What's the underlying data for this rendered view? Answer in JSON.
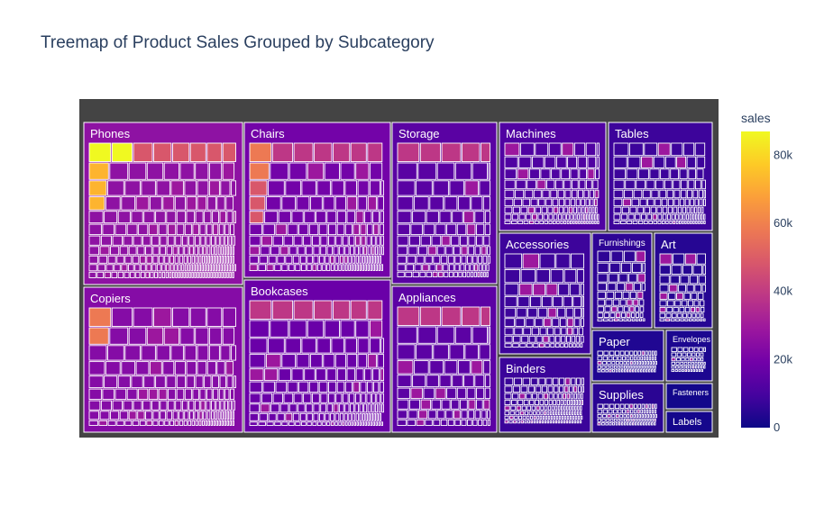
{
  "chart_data": {
    "type": "treemap",
    "title": "Treemap of Product Sales Grouped by Subcategory",
    "colorbar": {
      "title": "sales",
      "range": [
        0,
        87000
      ],
      "ticks": [
        {
          "value": 0,
          "label": "0"
        },
        {
          "value": 20000,
          "label": "20k"
        },
        {
          "value": 40000,
          "label": "40k"
        },
        {
          "value": 60000,
          "label": "60k"
        },
        {
          "value": 80000,
          "label": "80k"
        }
      ],
      "colorscale": [
        "#0d0887",
        "#46039f",
        "#7201a8",
        "#9c179e",
        "#bd3786",
        "#d8576b",
        "#ed7953",
        "#fb9f3a",
        "#fdca26",
        "#f0f921"
      ]
    },
    "subcategories": [
      {
        "name": "Phones",
        "sales": 330000,
        "color": "#8e12a3"
      },
      {
        "name": "Chairs",
        "sales": 328000,
        "color": "#7303a8"
      },
      {
        "name": "Storage",
        "sales": 224000,
        "color": "#5a02a3"
      },
      {
        "name": "Tables",
        "sales": 207000,
        "color": "#3d049b"
      },
      {
        "name": "Binders",
        "sales": 203000,
        "color": "#3b049a"
      },
      {
        "name": "Machines",
        "sales": 189000,
        "color": "#5002a2"
      },
      {
        "name": "Accessories",
        "sales": 167000,
        "color": "#3d049b"
      },
      {
        "name": "Copiers",
        "sales": 150000,
        "color": "#850ca6"
      },
      {
        "name": "Bookcases",
        "sales": 115000,
        "color": "#6a00a8"
      },
      {
        "name": "Appliances",
        "sales": 108000,
        "color": "#5c02a4"
      },
      {
        "name": "Furnishings",
        "sales": 92000,
        "color": "#2e0595"
      },
      {
        "name": "Paper",
        "sales": 79000,
        "color": "#200792"
      },
      {
        "name": "Supplies",
        "sales": 47000,
        "color": "#2a0593"
      },
      {
        "name": "Art",
        "sales": 27000,
        "color": "#260693"
      },
      {
        "name": "Envelopes",
        "sales": 16000,
        "color": "#1c0790"
      },
      {
        "name": "Labels",
        "sales": 12000,
        "color": "#15078c"
      },
      {
        "name": "Fasteners",
        "sales": 3000,
        "color": "#13078b"
      }
    ]
  }
}
